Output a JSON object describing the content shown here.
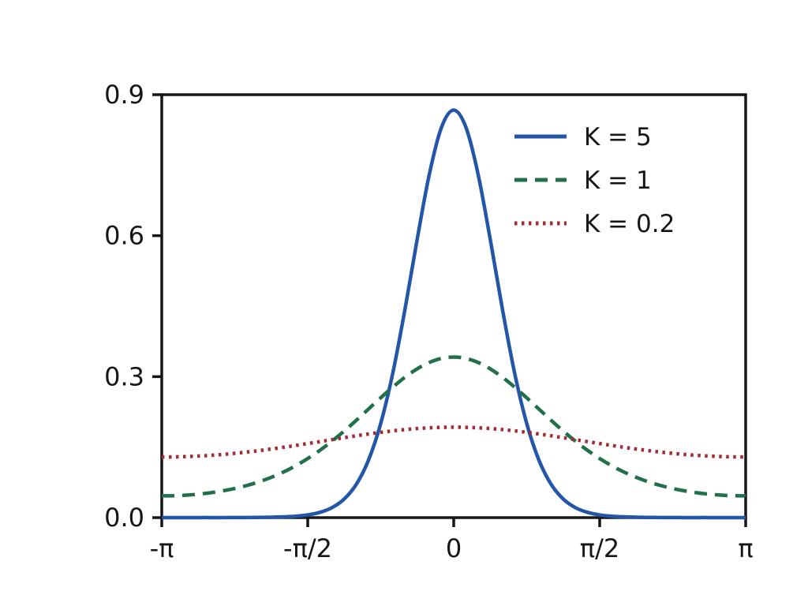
{
  "figure": {
    "background_color": "#ffffff",
    "axis_color": "#161616",
    "tick_label_color": "#161616"
  },
  "chart_data": {
    "type": "line",
    "title": "",
    "subtitle": "",
    "xlabel": "",
    "ylabel": "",
    "x_unit": "multiples of pi (radians)",
    "xlim": [
      -1,
      1
    ],
    "ylim": [
      0,
      0.9
    ],
    "grid": false,
    "legend_position": "upper right",
    "x_ticks": [
      {
        "value": -1,
        "label": "-π"
      },
      {
        "value": -0.5,
        "label": "-π/2"
      },
      {
        "value": 0,
        "label": "0"
      },
      {
        "value": 0.5,
        "label": "π/2"
      },
      {
        "value": 1,
        "label": "π"
      }
    ],
    "y_ticks": [
      {
        "value": 0,
        "label": "0.0"
      },
      {
        "value": 0.3,
        "label": "0.3"
      },
      {
        "value": 0.6,
        "label": "0.6"
      },
      {
        "value": 0.9,
        "label": "0.9"
      }
    ],
    "x_over_pi": [
      -1,
      -0.9583,
      -0.9167,
      -0.875,
      -0.8333,
      -0.7917,
      -0.75,
      -0.7083,
      -0.6667,
      -0.625,
      -0.5833,
      -0.5417,
      -0.5,
      -0.4583,
      -0.4167,
      -0.375,
      -0.3333,
      -0.2917,
      -0.25,
      -0.2083,
      -0.1667,
      -0.125,
      -0.0833,
      -0.0417,
      0,
      0.0417,
      0.0833,
      0.125,
      0.1667,
      0.2083,
      0.25,
      0.2917,
      0.3333,
      0.375,
      0.4167,
      0.4583,
      0.5,
      0.5417,
      0.5833,
      0.625,
      0.6667,
      0.7083,
      0.75,
      0.7917,
      0.8333,
      0.875,
      0.9167,
      0.9583,
      1
    ],
    "series": [
      {
        "name": "K = 5",
        "line_style": "solid",
        "color": "#2456a8",
        "y": [
          0.0,
          0.0,
          0.0,
          0.0001,
          0.0001,
          0.0001,
          0.0002,
          0.0003,
          0.0005,
          0.0009,
          0.0016,
          0.003,
          0.0058,
          0.0112,
          0.0213,
          0.0396,
          0.0712,
          0.1226,
          0.2005,
          0.3086,
          0.4441,
          0.5927,
          0.7313,
          0.8308,
          0.8672,
          0.8308,
          0.7313,
          0.5927,
          0.4441,
          0.3086,
          0.2005,
          0.1226,
          0.0712,
          0.0396,
          0.0213,
          0.0112,
          0.0058,
          0.003,
          0.0016,
          0.0009,
          0.0005,
          0.0003,
          0.0002,
          0.0001,
          0.0001,
          0.0001,
          0.0,
          0.0,
          0.0
        ]
      },
      {
        "name": "K = 1",
        "line_style": "dashed",
        "color": "#21704a",
        "y": [
          0.0463,
          0.0466,
          0.0478,
          0.0499,
          0.0529,
          0.0569,
          0.062,
          0.0684,
          0.0762,
          0.0857,
          0.097,
          0.1103,
          0.1257,
          0.1432,
          0.1628,
          0.1843,
          0.2073,
          0.2311,
          0.255,
          0.2779,
          0.2989,
          0.3167,
          0.3303,
          0.3388,
          0.3417,
          0.3388,
          0.3303,
          0.3167,
          0.2989,
          0.2779,
          0.255,
          0.2311,
          0.2073,
          0.1843,
          0.1628,
          0.1432,
          0.1257,
          0.1103,
          0.097,
          0.0857,
          0.0762,
          0.0684,
          0.062,
          0.0569,
          0.0529,
          0.0499,
          0.0478,
          0.0466,
          0.0463
        ]
      },
      {
        "name": "K = 0.2",
        "line_style": "dotted",
        "color": "#a32b33",
        "y": [
          0.129,
          0.1292,
          0.1299,
          0.131,
          0.1325,
          0.1344,
          0.1368,
          0.1395,
          0.1426,
          0.146,
          0.1496,
          0.1535,
          0.1576,
          0.1617,
          0.1659,
          0.1701,
          0.1742,
          0.178,
          0.1815,
          0.1847,
          0.1874,
          0.1896,
          0.1911,
          0.1921,
          0.1925,
          0.1921,
          0.1911,
          0.1896,
          0.1874,
          0.1847,
          0.1815,
          0.178,
          0.1742,
          0.1701,
          0.1659,
          0.1617,
          0.1576,
          0.1535,
          0.1496,
          0.146,
          0.1426,
          0.1395,
          0.1368,
          0.1344,
          0.1325,
          0.131,
          0.1299,
          0.1292,
          0.129
        ]
      }
    ]
  }
}
